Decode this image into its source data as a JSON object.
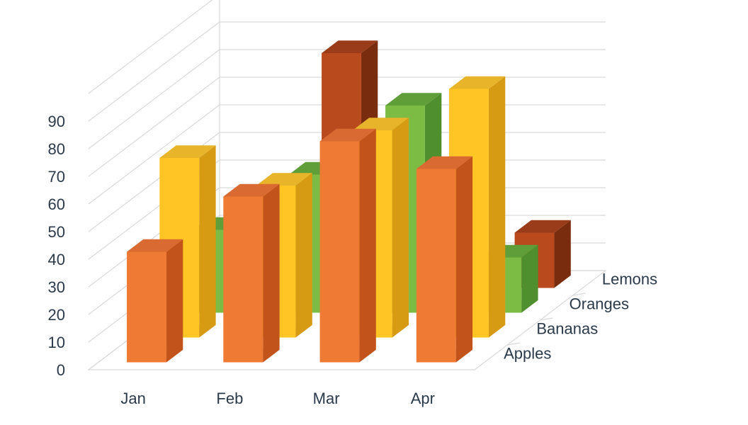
{
  "chart_data": {
    "type": "bar",
    "title": "",
    "xlabel": "",
    "ylabel": "",
    "categories": [
      "Jan",
      "Feb",
      "Mar",
      "Apr"
    ],
    "yticks": [
      "0",
      "10",
      "20",
      "30",
      "40",
      "50",
      "60",
      "70",
      "80",
      "90"
    ],
    "ylim": [
      0,
      100
    ],
    "grid": true,
    "series": [
      {
        "name": "Apples",
        "values": [
          40,
          60,
          80,
          70
        ],
        "colors": {
          "front": "#ee7a33",
          "side": "#c2531b",
          "top": "#d96b32"
        }
      },
      {
        "name": "Bananas",
        "values": [
          65,
          55,
          75,
          90
        ],
        "colors": {
          "front": "#ffc524",
          "side": "#d69b12",
          "top": "#e8b42a"
        }
      },
      {
        "name": "Oranges",
        "values": [
          30,
          50,
          75,
          20
        ],
        "colors": {
          "front": "#7cbc45",
          "side": "#4f8f2d",
          "top": "#5f9e38"
        }
      },
      {
        "name": "Lemons",
        "values": [
          0,
          85,
          0,
          20
        ],
        "colors": {
          "front": "#b84a1e",
          "side": "#7a2c0e",
          "top": "#9a3c1a"
        }
      }
    ]
  }
}
